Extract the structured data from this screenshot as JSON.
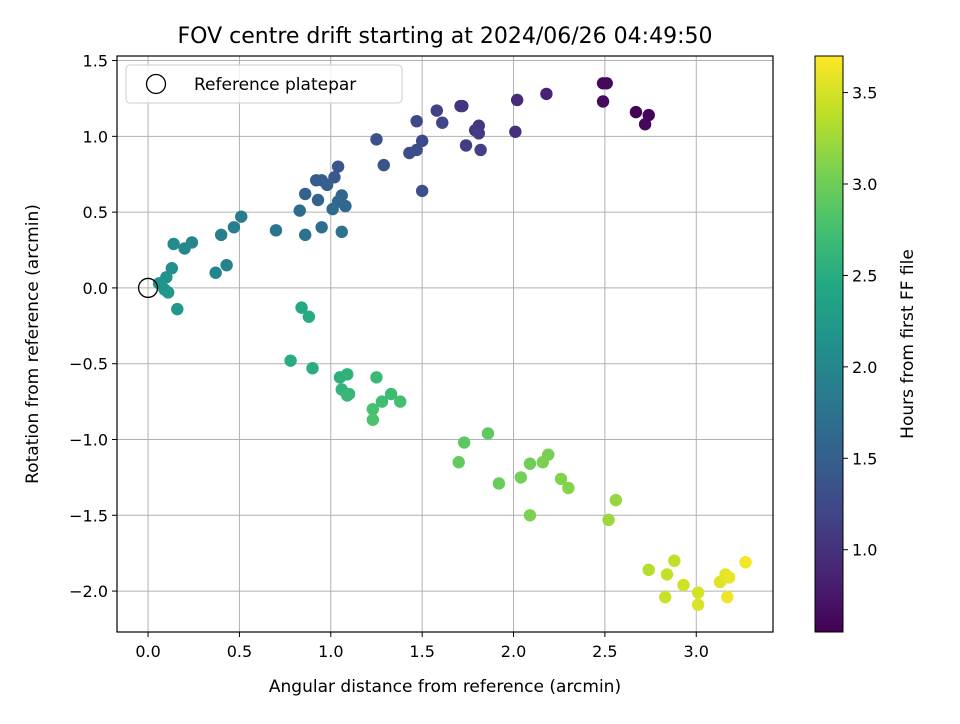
{
  "chart_data": {
    "type": "scatter",
    "title": "FOV centre drift starting at 2024/06/26 04:49:50",
    "xlabel": "Angular distance from reference (arcmin)",
    "ylabel": "Rotation from reference (arcmin)",
    "xlim": [
      -0.17,
      3.42
    ],
    "ylim": [
      -2.27,
      1.53
    ],
    "xticks": [
      0.0,
      0.5,
      1.0,
      1.5,
      2.0,
      2.5,
      3.0
    ],
    "xtick_labels": [
      "0.0",
      "0.5",
      "1.0",
      "1.5",
      "2.0",
      "2.5",
      "3.0"
    ],
    "yticks": [
      1.5,
      1.0,
      0.5,
      0.0,
      -0.5,
      -1.0,
      -1.5,
      -2.0
    ],
    "ytick_labels": [
      "1.5",
      "1.0",
      "0.5",
      "0.0",
      "−0.5",
      "−1.0",
      "−1.5",
      "−2.0"
    ],
    "grid": true,
    "colormap": "viridis",
    "colorbar": {
      "label": "Hours from first FF file",
      "range": [
        0.55,
        3.7
      ],
      "ticks": [
        1.0,
        1.5,
        2.0,
        2.5,
        3.0,
        3.5
      ],
      "tick_labels": [
        "1.0",
        "1.5",
        "2.0",
        "2.5",
        "3.0",
        "3.5"
      ]
    },
    "legend": {
      "position": "upper-left",
      "entries": [
        {
          "label": "Reference platepar",
          "marker": "open-circle"
        }
      ]
    },
    "reference_point": {
      "x": 0.0,
      "y": 0.0
    },
    "points": [
      {
        "x": 2.49,
        "y": 1.35,
        "c": 0.6
      },
      {
        "x": 2.51,
        "y": 1.35,
        "c": 0.62
      },
      {
        "x": 2.49,
        "y": 1.23,
        "c": 0.65
      },
      {
        "x": 2.67,
        "y": 1.16,
        "c": 0.57
      },
      {
        "x": 2.74,
        "y": 1.14,
        "c": 0.58
      },
      {
        "x": 2.72,
        "y": 1.08,
        "c": 0.6
      },
      {
        "x": 2.18,
        "y": 1.28,
        "c": 0.85
      },
      {
        "x": 2.02,
        "y": 1.24,
        "c": 0.92
      },
      {
        "x": 2.01,
        "y": 1.03,
        "c": 0.97
      },
      {
        "x": 1.72,
        "y": 1.2,
        "c": 1.0
      },
      {
        "x": 1.71,
        "y": 1.2,
        "c": 1.02
      },
      {
        "x": 1.81,
        "y": 1.07,
        "c": 1.05
      },
      {
        "x": 1.79,
        "y": 1.04,
        "c": 1.07
      },
      {
        "x": 1.81,
        "y": 1.02,
        "c": 1.1
      },
      {
        "x": 1.74,
        "y": 0.94,
        "c": 1.12
      },
      {
        "x": 1.82,
        "y": 0.91,
        "c": 1.15
      },
      {
        "x": 1.58,
        "y": 1.17,
        "c": 1.17
      },
      {
        "x": 1.61,
        "y": 1.09,
        "c": 1.2
      },
      {
        "x": 1.47,
        "y": 1.1,
        "c": 1.22
      },
      {
        "x": 1.5,
        "y": 0.97,
        "c": 1.25
      },
      {
        "x": 1.43,
        "y": 0.89,
        "c": 1.27
      },
      {
        "x": 1.47,
        "y": 0.91,
        "c": 1.3
      },
      {
        "x": 1.5,
        "y": 0.64,
        "c": 1.32
      },
      {
        "x": 1.25,
        "y": 0.98,
        "c": 1.35
      },
      {
        "x": 1.29,
        "y": 0.81,
        "c": 1.37
      },
      {
        "x": 1.04,
        "y": 0.8,
        "c": 1.4
      },
      {
        "x": 1.02,
        "y": 0.73,
        "c": 1.42
      },
      {
        "x": 0.92,
        "y": 0.71,
        "c": 1.45
      },
      {
        "x": 0.95,
        "y": 0.71,
        "c": 1.47
      },
      {
        "x": 0.98,
        "y": 0.68,
        "c": 1.5
      },
      {
        "x": 0.86,
        "y": 0.62,
        "c": 1.52
      },
      {
        "x": 0.93,
        "y": 0.58,
        "c": 1.55
      },
      {
        "x": 1.06,
        "y": 0.61,
        "c": 1.57
      },
      {
        "x": 1.04,
        "y": 0.57,
        "c": 1.6
      },
      {
        "x": 1.08,
        "y": 0.54,
        "c": 1.62
      },
      {
        "x": 1.01,
        "y": 0.52,
        "c": 1.65
      },
      {
        "x": 0.83,
        "y": 0.51,
        "c": 1.67
      },
      {
        "x": 0.95,
        "y": 0.4,
        "c": 1.7
      },
      {
        "x": 0.86,
        "y": 0.35,
        "c": 1.72
      },
      {
        "x": 1.06,
        "y": 0.37,
        "c": 1.75
      },
      {
        "x": 0.7,
        "y": 0.38,
        "c": 1.77
      },
      {
        "x": 0.51,
        "y": 0.47,
        "c": 1.85
      },
      {
        "x": 0.47,
        "y": 0.4,
        "c": 1.87
      },
      {
        "x": 0.4,
        "y": 0.35,
        "c": 1.9
      },
      {
        "x": 0.43,
        "y": 0.15,
        "c": 1.95
      },
      {
        "x": 0.37,
        "y": 0.1,
        "c": 1.97
      },
      {
        "x": 0.24,
        "y": 0.3,
        "c": 2.0
      },
      {
        "x": 0.2,
        "y": 0.26,
        "c": 2.02
      },
      {
        "x": 0.14,
        "y": 0.29,
        "c": 2.05
      },
      {
        "x": 0.13,
        "y": 0.13,
        "c": 2.1
      },
      {
        "x": 0.1,
        "y": 0.07,
        "c": 2.12
      },
      {
        "x": 0.06,
        "y": 0.03,
        "c": 2.15
      },
      {
        "x": 0.09,
        "y": -0.01,
        "c": 2.17
      },
      {
        "x": 0.11,
        "y": -0.03,
        "c": 2.2
      },
      {
        "x": 0.16,
        "y": -0.14,
        "c": 2.22
      },
      {
        "x": 0.84,
        "y": -0.13,
        "c": 2.45
      },
      {
        "x": 0.88,
        "y": -0.19,
        "c": 2.47
      },
      {
        "x": 0.78,
        "y": -0.48,
        "c": 2.5
      },
      {
        "x": 0.9,
        "y": -0.53,
        "c": 2.52
      },
      {
        "x": 1.05,
        "y": -0.59,
        "c": 2.55
      },
      {
        "x": 1.09,
        "y": -0.57,
        "c": 2.57
      },
      {
        "x": 1.06,
        "y": -0.67,
        "c": 2.6
      },
      {
        "x": 1.1,
        "y": -0.7,
        "c": 2.62
      },
      {
        "x": 1.09,
        "y": -0.71,
        "c": 2.65
      },
      {
        "x": 1.25,
        "y": -0.59,
        "c": 2.67
      },
      {
        "x": 1.33,
        "y": -0.7,
        "c": 2.7
      },
      {
        "x": 1.28,
        "y": -0.75,
        "c": 2.72
      },
      {
        "x": 1.38,
        "y": -0.75,
        "c": 2.75
      },
      {
        "x": 1.23,
        "y": -0.8,
        "c": 2.77
      },
      {
        "x": 1.23,
        "y": -0.87,
        "c": 2.8
      },
      {
        "x": 1.73,
        "y": -1.02,
        "c": 2.9
      },
      {
        "x": 1.86,
        "y": -0.96,
        "c": 2.92
      },
      {
        "x": 1.7,
        "y": -1.15,
        "c": 2.95
      },
      {
        "x": 1.92,
        "y": -1.29,
        "c": 2.97
      },
      {
        "x": 2.09,
        "y": -1.16,
        "c": 3.0
      },
      {
        "x": 2.04,
        "y": -1.25,
        "c": 3.02
      },
      {
        "x": 2.19,
        "y": -1.1,
        "c": 3.05
      },
      {
        "x": 2.16,
        "y": -1.15,
        "c": 3.07
      },
      {
        "x": 2.09,
        "y": -1.5,
        "c": 3.08
      },
      {
        "x": 2.26,
        "y": -1.26,
        "c": 3.1
      },
      {
        "x": 2.3,
        "y": -1.32,
        "c": 3.12
      },
      {
        "x": 2.56,
        "y": -1.4,
        "c": 3.2
      },
      {
        "x": 2.52,
        "y": -1.53,
        "c": 3.22
      },
      {
        "x": 2.74,
        "y": -1.86,
        "c": 3.35
      },
      {
        "x": 2.88,
        "y": -1.8,
        "c": 3.4
      },
      {
        "x": 2.84,
        "y": -1.89,
        "c": 3.42
      },
      {
        "x": 2.83,
        "y": -2.04,
        "c": 3.45
      },
      {
        "x": 2.93,
        "y": -1.96,
        "c": 3.47
      },
      {
        "x": 3.01,
        "y": -2.01,
        "c": 3.5
      },
      {
        "x": 3.01,
        "y": -2.09,
        "c": 3.52
      },
      {
        "x": 3.13,
        "y": -1.94,
        "c": 3.55
      },
      {
        "x": 3.16,
        "y": -1.89,
        "c": 3.57
      },
      {
        "x": 3.18,
        "y": -1.91,
        "c": 3.6
      },
      {
        "x": 3.17,
        "y": -2.04,
        "c": 3.62
      },
      {
        "x": 3.27,
        "y": -1.81,
        "c": 3.65
      }
    ]
  }
}
